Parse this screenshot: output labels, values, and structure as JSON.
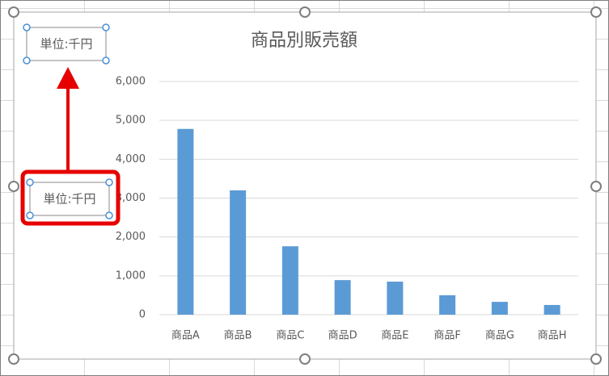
{
  "chart_data": {
    "type": "bar",
    "title": "商品別販売額",
    "unit_label": "単位:千円",
    "categories": [
      "商品A",
      "商品B",
      "商品C",
      "商品D",
      "商品E",
      "商品F",
      "商品G",
      "商品H"
    ],
    "values": [
      4780,
      3200,
      1760,
      890,
      850,
      500,
      330,
      250
    ],
    "color": "#5b9bd5",
    "ylim": [
      0,
      6000
    ],
    "yticks": [
      0,
      {
        "value": 1000,
        "label": "1,000"
      },
      {
        "value": 2000,
        "label": "2,000"
      },
      {
        "value": 3000,
        "label": "3,000"
      },
      {
        "value": 4000,
        "label": "4,000"
      },
      {
        "value": 5000,
        "label": "5,000"
      },
      {
        "value": 6000,
        "label": "6,000"
      }
    ],
    "grid": true
  }
}
